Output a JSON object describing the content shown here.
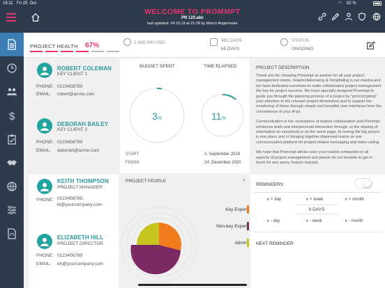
{
  "status_bar": {
    "time": "16:11",
    "date": "Fri 25. Oct",
    "battery": "82 %"
  },
  "header": {
    "title": "WELCOME TO PROMMPT",
    "project_number": "PN 123.abc",
    "last_updated": "last updated: 24.10.19 at 21:28 by Marco Angermeier",
    "icons": [
      "link-icon",
      "pencil-icon",
      "people-group-icon",
      "shield-icon",
      "globe-icon"
    ]
  },
  "sidebar": {
    "items": [
      {
        "name": "document",
        "active": true
      },
      {
        "name": "clock",
        "active": false
      },
      {
        "name": "people",
        "active": false
      },
      {
        "name": "dollar",
        "active": false
      },
      {
        "name": "clipboard",
        "active": false
      },
      {
        "name": "handshake",
        "active": false
      },
      {
        "name": "globe",
        "active": false
      },
      {
        "name": "sliders",
        "active": false
      },
      {
        "name": "pdf",
        "active": false
      }
    ]
  },
  "health": {
    "label": "PROJECT HEALTH",
    "percent": "67%",
    "segments_filled": 4,
    "segments_total": 6,
    "budget_amount": "1.000.000 USD",
    "duration_label": "481 DAYS",
    "duration_sub": "55 DAYS",
    "status_label": "STATUS",
    "status_value": "ONGOING"
  },
  "contacts": [
    {
      "name": "ROBERT COLEMAN",
      "role": "KEY CLIENT 1",
      "phone_label": "PHONE:",
      "phone": "0123456789",
      "email_label": "EMAIL:",
      "email": "robert@acme.com"
    },
    {
      "name": "DEBORAH BAILEY",
      "role": "KEY CLIENT 2",
      "phone_label": "PHONE:",
      "phone": "0123456789",
      "email_label": "EMAIL:",
      "email": "deborah@acme.com"
    },
    {
      "name": "KEITH THOMPSON",
      "role": "PROJECT MANAGER",
      "phone_label": "PHONE:",
      "phone": "0123456789,",
      "phone2": "kt@yourcompany.com",
      "email_label": "",
      "email": ""
    },
    {
      "name": "ELIZABETH HILL",
      "role": "PROJECT DIRECTOR",
      "phone_label": "PHONE:",
      "phone": "0123456789",
      "email_label": "EMAIL:",
      "email": "eh@yourcompany.com"
    }
  ],
  "budget": {
    "spent_label": "BUDGET SPENT",
    "spent_value": 3,
    "spent_suffix": "%",
    "elapsed_label": "TIME ELAPSED",
    "elapsed_value": 11,
    "elapsed_suffix": "%",
    "start_label": "START",
    "start_date": "1. September 2019",
    "finish_label": "FINISH",
    "finish_date": "24. December 2020"
  },
  "description": {
    "title": "PROJECT DESCRIPTION",
    "paragraphs": [
      "Thank you for choosing Prommpt as partner for all your project management needs. #startcollaborating & #stopfailing is our mantra and we have dedicated ourselves to make collaborative project management the key for project success. We have specially designed Prommpt to guide you through the planning process of a project by \"prom(m)pting\" your attention to the relevant project dimensions and to support the monitoring of these through simple and beautiful user interfaces from the convenience of your iPad.",
      "Communication is the centrepiece of mature collaboration and Prommpt enhances team and interpersonal interaction through: a) the sharing of information so everybody is on the same page, b) seeing the big picture in one place and c) bringing together dispersed teams on one communication platform for project related messaging and video calling.",
      "We hope that Prommpt will be soon your trusted companion in all aspects of project management and please do not hesitate to get in touch for any query, feature request,"
    ]
  },
  "people": {
    "title": "PROJECT PEOPLE",
    "count": "4",
    "legend": [
      {
        "label": "Key Expert",
        "color": "#f07c1e"
      },
      {
        "label": "Non-key Expert",
        "color": "#7d2a62"
      },
      {
        "label": "Admin",
        "color": "#c7c420"
      }
    ]
  },
  "reminders": {
    "title": "REMINDERS",
    "plus_day": "+ day",
    "plus_week": "+ week",
    "plus_month": "+ month",
    "days": "0 DAYS",
    "minus_day": "- day",
    "minus_week": "- week",
    "minus_month": "- month",
    "next_label": "NEXT REMINDER"
  },
  "colors": {
    "accent": "#e8336d",
    "teal": "#23a3a0",
    "navy": "#2d3b4d",
    "active_blue": "#3c7fb6"
  }
}
